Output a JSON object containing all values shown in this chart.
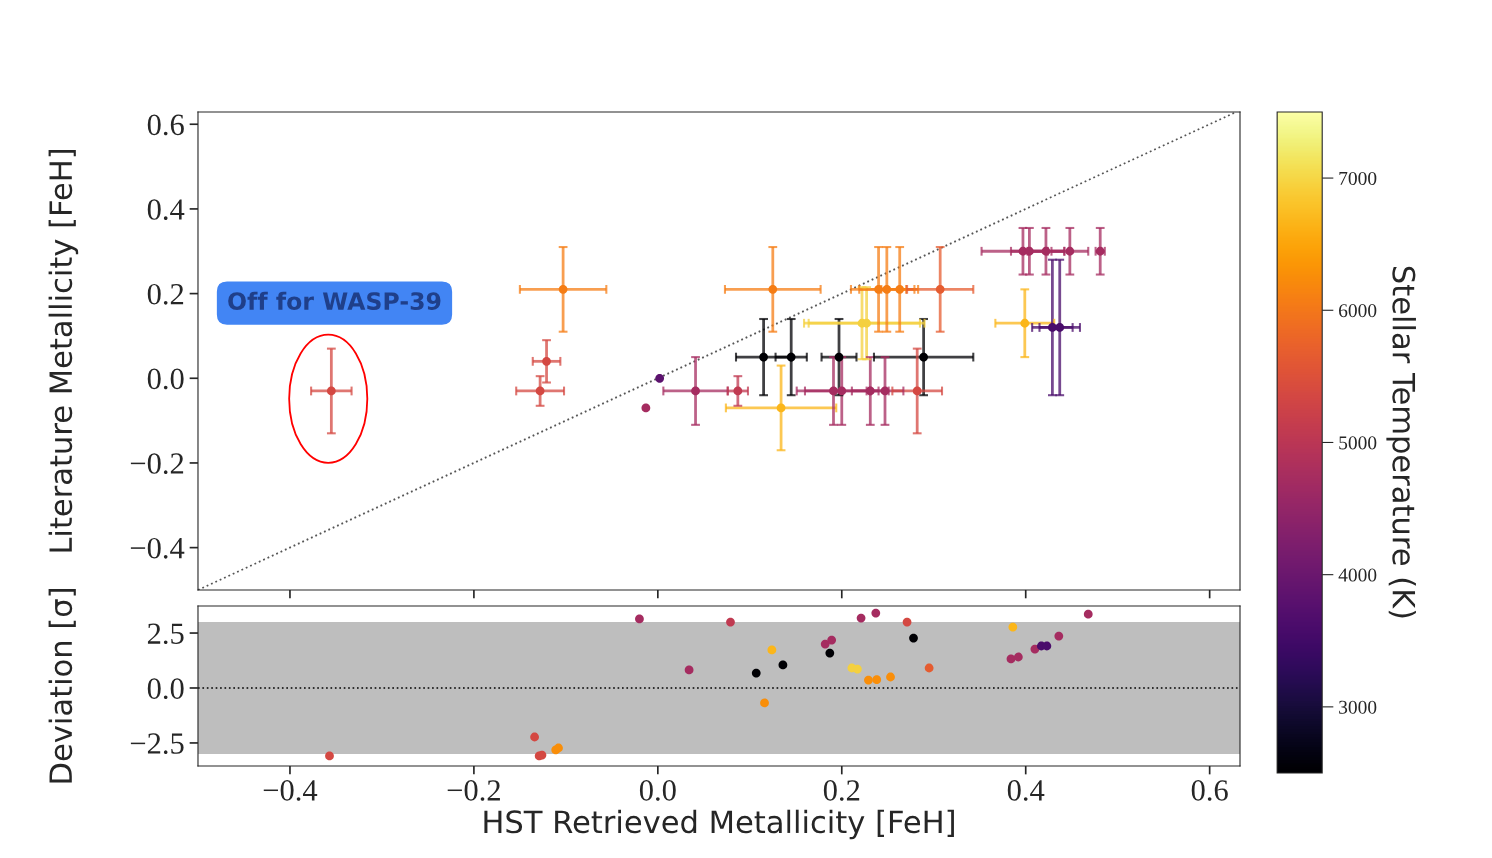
{
  "chart_data": [
    {
      "type": "scatter",
      "ylabel": "Literature Metallicity [FeH]",
      "xlim": [
        -0.5,
        0.633
      ],
      "ylim": [
        -0.5,
        0.629
      ],
      "xticks": [
        {
          "value": -0.4,
          "label": null
        },
        {
          "value": -0.2,
          "label": null
        },
        {
          "value": 0.0,
          "label": null
        },
        {
          "value": 0.2,
          "label": null
        },
        {
          "value": 0.4,
          "label": null
        },
        {
          "value": 0.6,
          "label": null
        }
      ],
      "yticks": [
        {
          "value": -0.4,
          "label": "−0.4"
        },
        {
          "value": -0.2,
          "label": "−0.2"
        },
        {
          "value": 0.0,
          "label": "0.0"
        },
        {
          "value": 0.2,
          "label": "0.2"
        },
        {
          "value": 0.4,
          "label": "0.4"
        },
        {
          "value": 0.6,
          "label": "0.6"
        }
      ],
      "tick_labels": "y",
      "marker": "circle",
      "clim": [
        2500,
        7500
      ],
      "cticks": [
        3000,
        4000,
        5000,
        6000,
        7000
      ],
      "clabel": "Stellar Temperature (K)",
      "annotations": [
        "Off for WASP-39"
      ],
      "series": [
        {
          "x": [
            -0.355,
            -0.103,
            -0.121,
            -0.128,
            0.002,
            -0.013,
            0.041,
            0.087,
            0.125,
            0.134,
            0.115,
            0.145,
            0.197,
            0.289,
            0.222,
            0.227,
            0.191,
            0.2,
            0.231,
            0.247,
            0.282,
            0.24,
            0.249,
            0.263,
            0.307,
            0.397,
            0.404,
            0.422,
            0.448,
            0.481,
            0.399,
            0.429,
            0.437
          ],
          "values": [
            -0.03,
            0.21,
            0.04,
            -0.03,
            0.0,
            -0.07,
            -0.03,
            -0.03,
            0.21,
            -0.07,
            0.05,
            0.05,
            0.05,
            0.05,
            0.13,
            0.13,
            -0.03,
            -0.03,
            -0.03,
            -0.03,
            -0.03,
            0.21,
            0.21,
            0.21,
            0.21,
            0.3,
            0.3,
            0.3,
            0.3,
            0.3,
            0.13,
            0.12,
            0.12
          ],
          "colors": [
            "#d44842",
            "#f57d15",
            "#d44842",
            "#d44842",
            "#5c126e",
            "#a52c60",
            "#a52c60",
            "#c03a51",
            "#f57d15",
            "#fbb61a",
            "#000004",
            "#000004",
            "#000004",
            "#000004",
            "#f4d03f",
            "#f4d03f",
            "#a52c60",
            "#a52c60",
            "#a52c60",
            "#a52c60",
            "#d44842",
            "#f57d15",
            "#f57d15",
            "#f57d15",
            "#e55c30",
            "#a52c60",
            "#a52c60",
            "#a52c60",
            "#a52c60",
            "#a52c60",
            "#fbb61a",
            "#4a0c6b",
            "#4a0c6b"
          ],
          "errors": [
            0.1,
            0.1,
            0.05,
            0.035,
            null,
            null,
            0.08,
            0.035,
            0.1,
            0.1,
            0.09,
            0.09,
            0.09,
            0.09,
            0.085,
            0.085,
            0.08,
            0.08,
            0.08,
            0.08,
            0.1,
            0.1,
            0.1,
            0.1,
            0.1,
            0.055,
            0.055,
            0.055,
            0.055,
            0.055,
            0.08,
            0.16,
            0.16
          ],
          "xerrors": [
            0.022,
            0.047,
            0.015,
            0.026,
            null,
            null,
            0.035,
            0.011,
            0.052,
            0.06,
            0.03,
            0.017,
            0.019,
            0.054,
            0.063,
            0.063,
            0.04,
            0.04,
            0.02,
            0.02,
            0.027,
            0.03,
            0.03,
            0.02,
            0.036,
            0.045,
            0.02,
            0.02,
            0.02,
            0.005,
            0.032,
            0.022,
            0.022
          ]
        },
        {
          "type": "line",
          "x": [
            -0.5,
            0.629
          ],
          "values": [
            -0.5,
            0.629
          ],
          "color": "#555555",
          "line_style": "dotted",
          "marker": "none"
        }
      ]
    },
    {
      "type": "scatter",
      "xlabel": "HST Retrieved Metallicity [FeH]",
      "ylabel": "Deviation [σ]",
      "xlim": [
        -0.5,
        0.633
      ],
      "ylim": [
        -3.55,
        3.73
      ],
      "xticks": [
        {
          "value": -0.4,
          "label": "−0.4"
        },
        {
          "value": -0.2,
          "label": "−0.2"
        },
        {
          "value": 0.0,
          "label": "0.0"
        },
        {
          "value": 0.2,
          "label": "0.2"
        },
        {
          "value": 0.4,
          "label": "0.4"
        },
        {
          "value": 0.6,
          "label": "0.6"
        }
      ],
      "yticks": [
        {
          "value": -2.5,
          "label": "−2.5"
        },
        {
          "value": 0.0,
          "label": "0.0"
        },
        {
          "value": 2.5,
          "label": "2.5"
        }
      ],
      "marker": "circle",
      "bands": [
        {
          "axis": "y",
          "from": -3,
          "to": 3,
          "color": "#bebebe"
        }
      ],
      "ref_lines": [
        {
          "axis": "y",
          "value": 0,
          "color": "#000000",
          "line_style": "dotted"
        }
      ],
      "series": [
        {
          "x": [
            -0.357,
            -0.134,
            -0.129,
            -0.126,
            -0.111,
            -0.108,
            -0.02,
            0.034,
            0.079,
            0.107,
            0.116,
            0.124,
            0.136,
            0.182,
            0.189,
            0.187,
            0.211,
            0.217,
            0.221,
            0.229,
            0.238,
            0.237,
            0.253,
            0.271,
            0.278,
            0.295,
            0.386,
            0.384,
            0.392,
            0.41,
            0.417,
            0.423,
            0.436,
            0.468
          ],
          "values": [
            -3.09,
            -2.23,
            -3.09,
            -3.05,
            -2.82,
            -2.73,
            3.14,
            0.82,
            3.0,
            0.68,
            -0.68,
            1.73,
            1.05,
            2.0,
            2.18,
            1.59,
            0.91,
            0.86,
            3.18,
            0.36,
            0.38,
            3.41,
            0.5,
            3.0,
            2.27,
            0.91,
            2.77,
            1.32,
            1.41,
            1.77,
            1.91,
            1.91,
            2.36,
            3.36
          ],
          "colors": [
            "#d44842",
            "#d44842",
            "#d44842",
            "#d44842",
            "#f98e09",
            "#f98e09",
            "#a52c60",
            "#a52c60",
            "#c03a51",
            "#000004",
            "#f98e09",
            "#fbb61a",
            "#000004",
            "#a52c60",
            "#a52c60",
            "#000004",
            "#f4d03f",
            "#f4d03f",
            "#a52c60",
            "#f98e09",
            "#f98e09",
            "#a52c60",
            "#f98e09",
            "#d44842",
            "#000004",
            "#e55c30",
            "#fbb61a",
            "#a52c60",
            "#a52c60",
            "#a52c60",
            "#4a0c6b",
            "#4a0c6b",
            "#a52c60",
            "#a52c60"
          ]
        }
      ]
    }
  ]
}
